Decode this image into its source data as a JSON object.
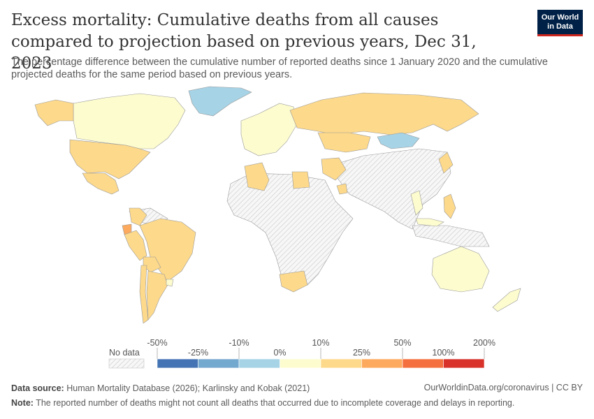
{
  "title": "Excess mortality: Cumulative deaths from all causes compared to projection based on previous years, Dec 31, 2023",
  "subtitle": "The percentage difference between the cumulative number of reported deaths since 1 January 2020 and the cumulative projected deaths for the same period based on previous years.",
  "logo": {
    "line1": "Our World",
    "line2": "in Data"
  },
  "legend": {
    "no_data_label": "No data",
    "ticks_top": [
      "-50%",
      "-10%",
      "10%",
      "50%",
      "200%"
    ],
    "ticks_bottom": [
      "-25%",
      "0%",
      "25%",
      "100%"
    ],
    "colors": [
      "#4574b4",
      "#74a9cf",
      "#a6d3e6",
      "#fdfccf",
      "#fdd98b",
      "#fdaa5e",
      "#f4703f",
      "#d8322a"
    ]
  },
  "map_regions": [
    {
      "name": "Greenland",
      "bin": 2
    },
    {
      "name": "Canada",
      "bin": 3
    },
    {
      "name": "United States",
      "bin": 4
    },
    {
      "name": "Mexico",
      "bin": 4
    },
    {
      "name": "Alaska",
      "bin": 4
    },
    {
      "name": "Ecuador",
      "bin": 5
    },
    {
      "name": "Peru",
      "bin": 4
    },
    {
      "name": "Brazil",
      "bin": 4
    },
    {
      "name": "Bolivia",
      "bin": 4
    },
    {
      "name": "Chile",
      "bin": 4
    },
    {
      "name": "Argentina",
      "bin": 4
    },
    {
      "name": "Colombia",
      "bin": 4
    },
    {
      "name": "Uruguay",
      "bin": 3
    },
    {
      "name": "Russia",
      "bin": 4
    },
    {
      "name": "Mongolia",
      "bin": 2
    },
    {
      "name": "Kazakhstan",
      "bin": 4
    },
    {
      "name": "Europe",
      "bin": 3
    },
    {
      "name": "Algeria",
      "bin": 4
    },
    {
      "name": "Egypt",
      "bin": 4
    },
    {
      "name": "South Africa",
      "bin": 4
    },
    {
      "name": "Australia",
      "bin": 3
    },
    {
      "name": "New Zealand",
      "bin": 3
    },
    {
      "name": "Japan",
      "bin": 4
    },
    {
      "name": "Philippines",
      "bin": 4
    },
    {
      "name": "Thailand",
      "bin": 3
    },
    {
      "name": "Malaysia",
      "bin": 3
    },
    {
      "name": "Iran",
      "bin": 4
    },
    {
      "name": "Oman",
      "bin": 4
    }
  ],
  "footer": {
    "source_label": "Data source:",
    "source_text": "Human Mortality Database (2026); Karlinsky and Kobak (2021)",
    "url": "OurWorldinData.org/coronavirus | CC BY",
    "note_label": "Note:",
    "note_text": "The reported number of deaths might not count all deaths that occurred due to incomplete coverage and delays in reporting."
  }
}
